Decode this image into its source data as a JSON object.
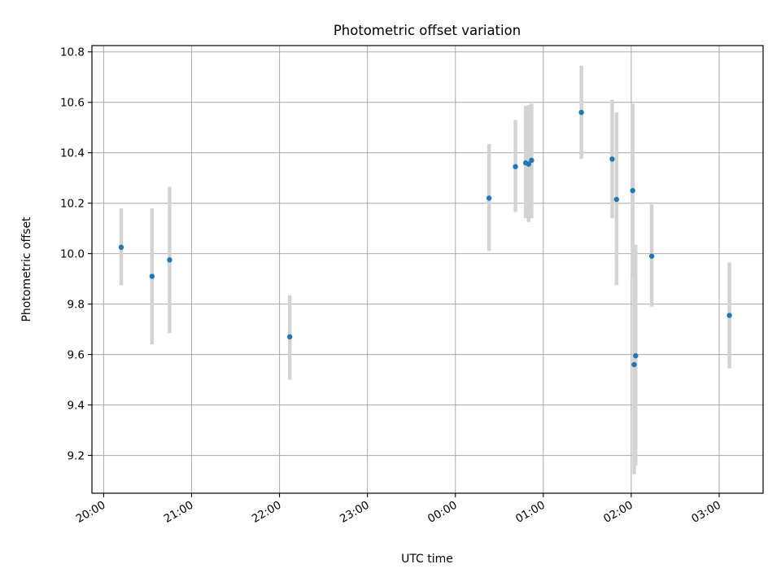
{
  "chart_data": {
    "type": "scatter",
    "title": "Photometric offset variation",
    "xlabel": "UTC time",
    "ylabel": "Photometric offset",
    "x_unit": "UTC time (HH:MM, wraps past midnight)",
    "xlim": [
      "19:52",
      "03:30"
    ],
    "ylim": [
      9.05,
      10.825
    ],
    "x_ticks": [
      "20:00",
      "21:00",
      "22:00",
      "23:00",
      "00:00",
      "01:00",
      "02:00",
      "03:00"
    ],
    "y_ticks": [
      9.2,
      9.4,
      9.6,
      9.8,
      10.0,
      10.2,
      10.4,
      10.6,
      10.8
    ],
    "y_tick_labels": [
      "9.2",
      "9.4",
      "9.6",
      "9.8",
      "10.0",
      "10.2",
      "10.4",
      "10.6",
      "10.8"
    ],
    "grid": true,
    "marker_color": "#1f77b4",
    "errorbar_color": "#d3d3d3",
    "points": [
      {
        "x": "20:12",
        "y": 10.025,
        "err_low": 9.875,
        "err_high": 10.18
      },
      {
        "x": "20:33",
        "y": 9.91,
        "err_low": 9.64,
        "err_high": 10.18
      },
      {
        "x": "20:45",
        "y": 9.975,
        "err_low": 9.685,
        "err_high": 10.265
      },
      {
        "x": "22:07",
        "y": 9.67,
        "err_low": 9.5,
        "err_high": 9.835
      },
      {
        "x": "00:23",
        "y": 10.22,
        "err_low": 10.01,
        "err_high": 10.435
      },
      {
        "x": "00:41",
        "y": 10.345,
        "err_low": 10.165,
        "err_high": 10.53
      },
      {
        "x": "00:48",
        "y": 10.36,
        "err_low": 10.14,
        "err_high": 10.585
      },
      {
        "x": "00:50",
        "y": 10.355,
        "err_low": 10.125,
        "err_high": 10.59
      },
      {
        "x": "00:52",
        "y": 10.37,
        "err_low": 10.14,
        "err_high": 10.595
      },
      {
        "x": "01:26",
        "y": 10.56,
        "err_low": 10.375,
        "err_high": 10.745
      },
      {
        "x": "01:47",
        "y": 10.375,
        "err_low": 10.14,
        "err_high": 10.61
      },
      {
        "x": "01:50",
        "y": 10.215,
        "err_low": 9.875,
        "err_high": 10.56
      },
      {
        "x": "02:01",
        "y": 10.25,
        "err_low": 9.9,
        "err_high": 10.595
      },
      {
        "x": "02:02",
        "y": 9.56,
        "err_low": 9.125,
        "err_high": 9.9
      },
      {
        "x": "02:03",
        "y": 9.595,
        "err_low": 9.16,
        "err_high": 10.035
      },
      {
        "x": "02:14",
        "y": 9.99,
        "err_low": 9.79,
        "err_high": 10.195
      },
      {
        "x": "03:07",
        "y": 9.755,
        "err_low": 9.545,
        "err_high": 9.965
      }
    ]
  }
}
